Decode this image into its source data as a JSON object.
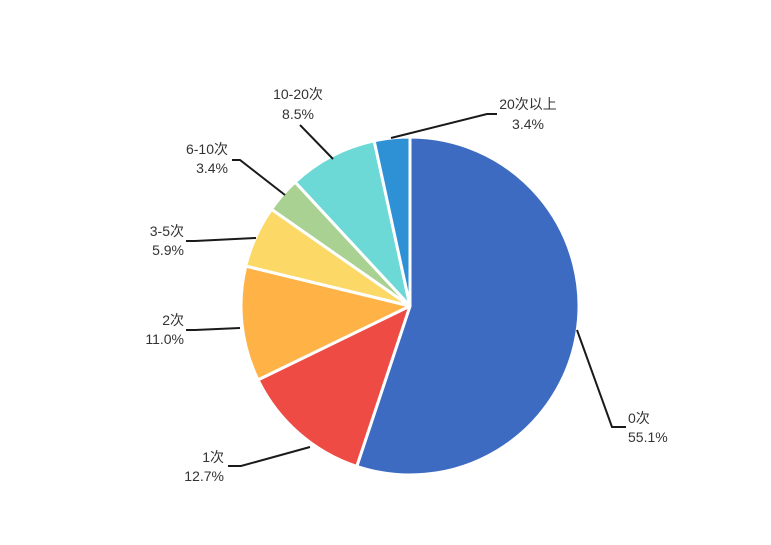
{
  "chart_data": {
    "type": "pie",
    "title": "",
    "categories": [
      "0次",
      "1次",
      "2次",
      "3-5次",
      "6-10次",
      "10-20次",
      "20次以上"
    ],
    "values": [
      55.1,
      12.7,
      11.0,
      5.9,
      3.4,
      8.5,
      3.4
    ],
    "value_labels": [
      "55.1%",
      "12.7%",
      "11.0%",
      "5.9%",
      "3.4%",
      "8.5%",
      "3.4%"
    ],
    "colors": [
      "#3d6bc1",
      "#ee4b45",
      "#ffb347",
      "#fcd967",
      "#a8d192",
      "#6cd9d6",
      "#2e91d6"
    ],
    "legend": "none"
  },
  "source": "",
  "credit": ""
}
